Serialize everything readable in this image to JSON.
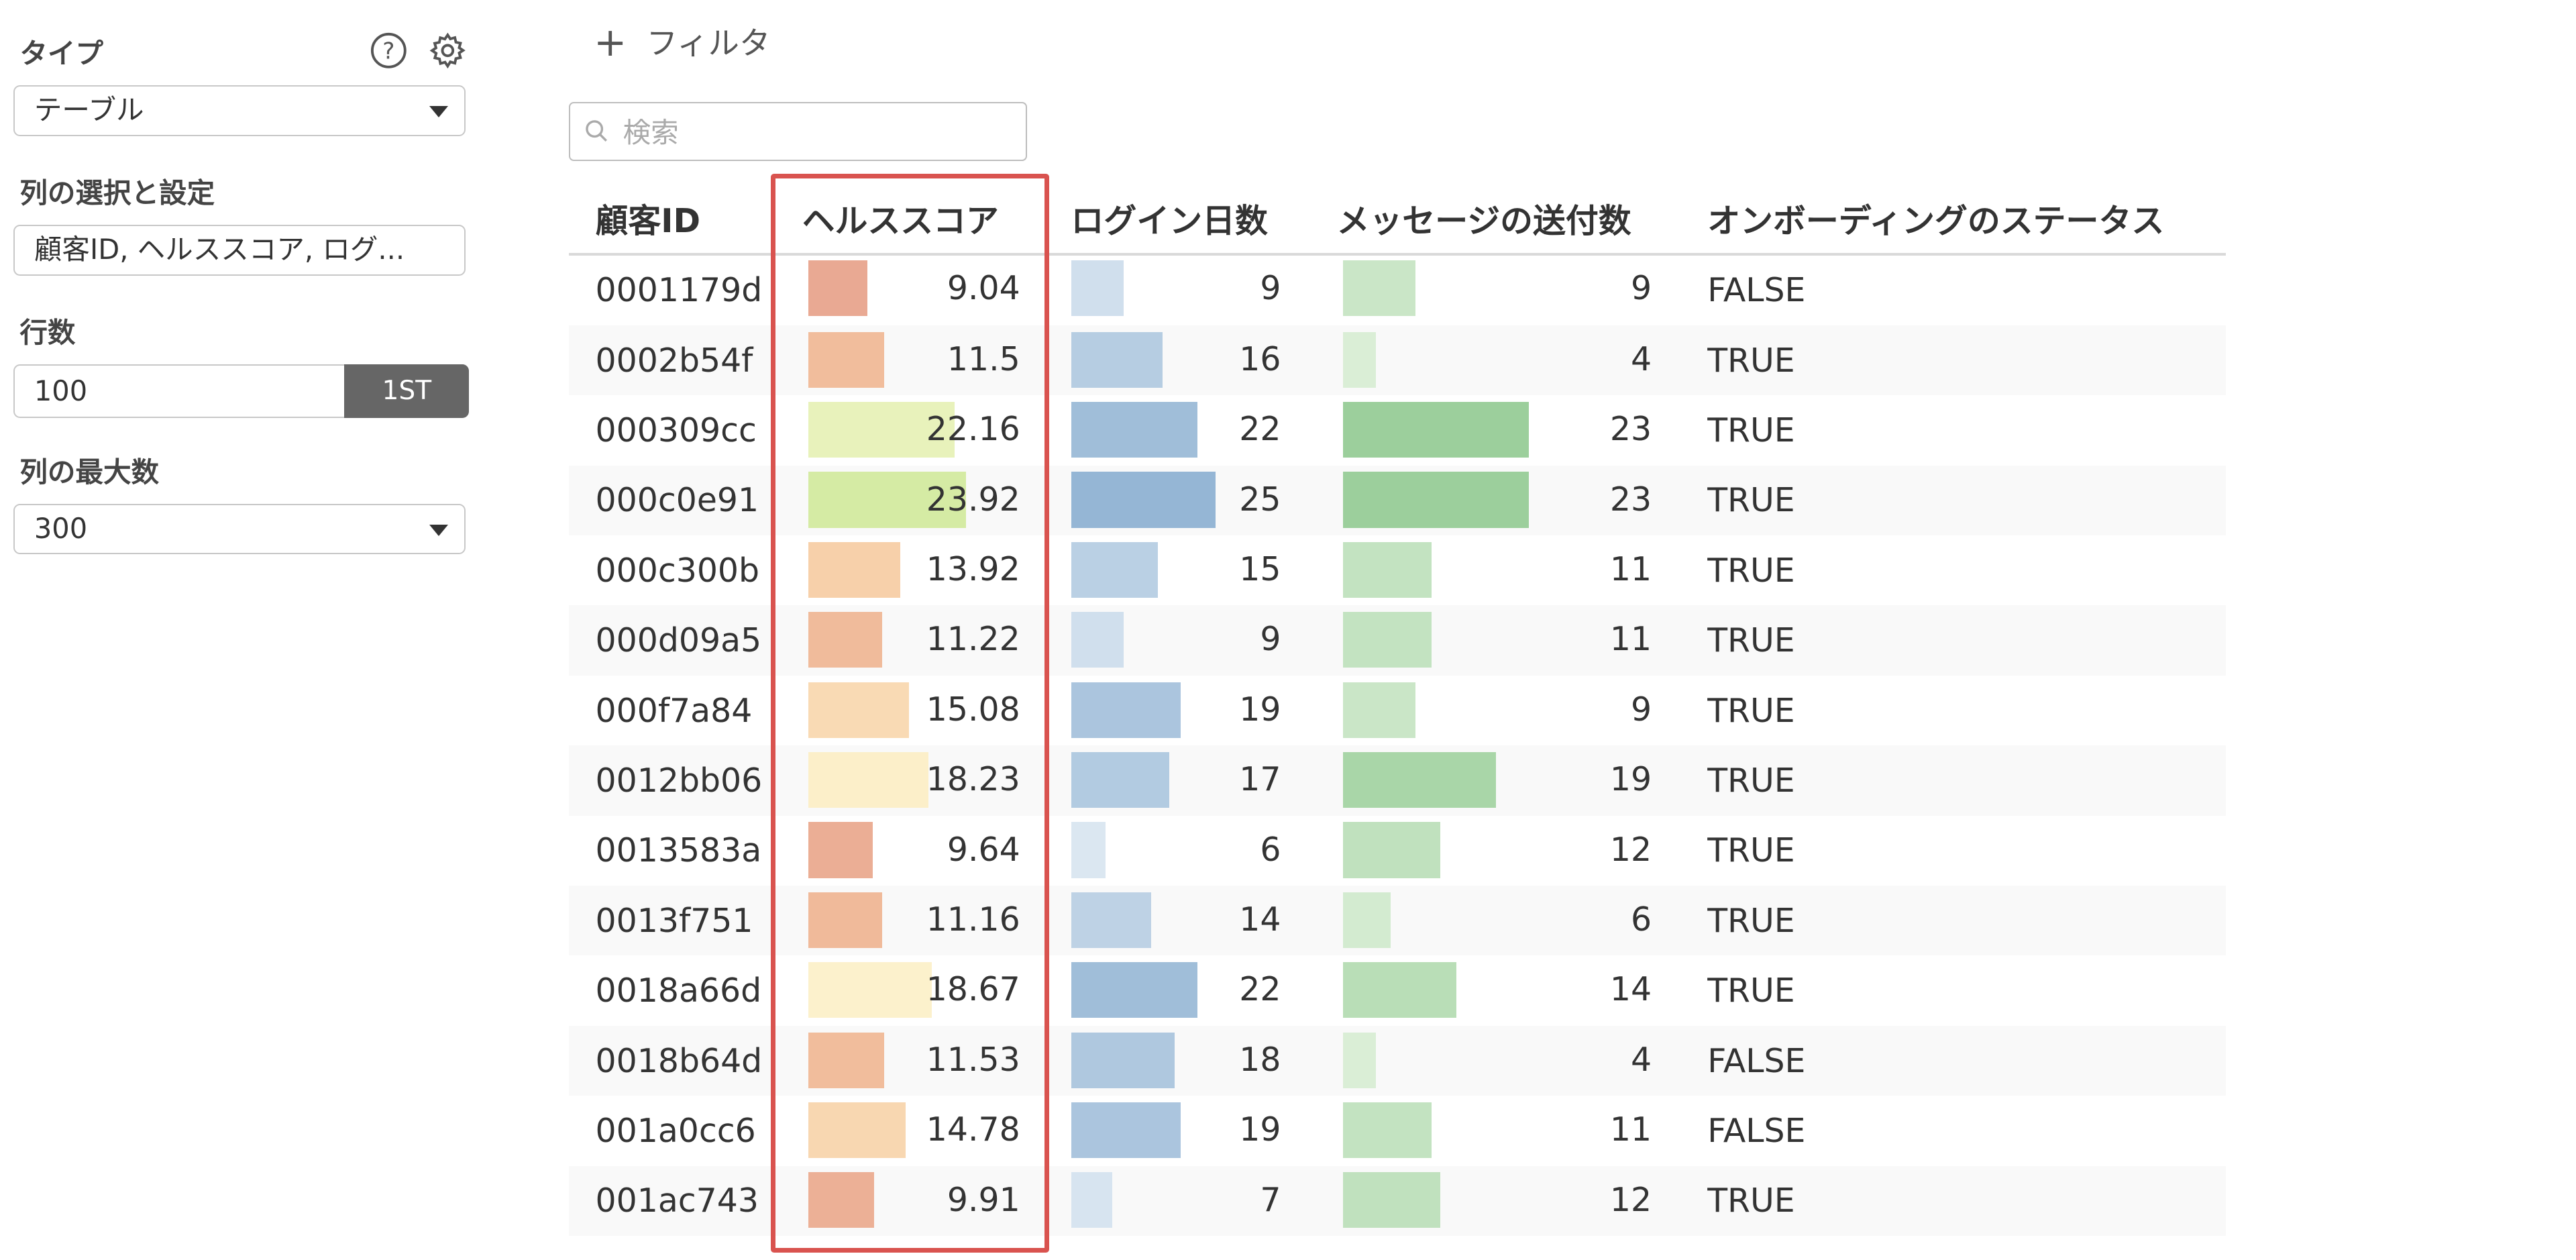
{
  "sidebar": {
    "type_label": "タイプ",
    "type_value": "テーブル",
    "columns_label": "列の選択と設定",
    "columns_value": "顧客ID, ヘルススコア, ログ...",
    "rows_label": "行数",
    "rows_value": "100",
    "rows_button": "1ST",
    "max_cols_label": "列の最大数",
    "max_cols_value": "300",
    "icons": {
      "help": "help-icon",
      "settings": "gear-icon"
    }
  },
  "toolbar": {
    "filter_label": "フィルタ"
  },
  "search": {
    "placeholder": "検索"
  },
  "table": {
    "headers": [
      "顧客ID",
      "ヘルススコア",
      "ログイン日数",
      "メッセージの送付数",
      "オンボーディングのステータス"
    ],
    "rows": [
      {
        "id": "0001179d",
        "health": "9.04",
        "logins": "9",
        "messages": "9",
        "status": "FALSE"
      },
      {
        "id": "0002b54f",
        "health": "11.5",
        "logins": "16",
        "messages": "4",
        "status": "TRUE"
      },
      {
        "id": "000309cc",
        "health": "22.16",
        "logins": "22",
        "messages": "23",
        "status": "TRUE"
      },
      {
        "id": "000c0e91",
        "health": "23.92",
        "logins": "25",
        "messages": "23",
        "status": "TRUE"
      },
      {
        "id": "000c300b",
        "health": "13.92",
        "logins": "15",
        "messages": "11",
        "status": "TRUE"
      },
      {
        "id": "000d09a5",
        "health": "11.22",
        "logins": "9",
        "messages": "11",
        "status": "TRUE"
      },
      {
        "id": "000f7a84",
        "health": "15.08",
        "logins": "19",
        "messages": "9",
        "status": "TRUE"
      },
      {
        "id": "0012bb06",
        "health": "18.23",
        "logins": "17",
        "messages": "19",
        "status": "TRUE"
      },
      {
        "id": "0013583a",
        "health": "9.64",
        "logins": "6",
        "messages": "12",
        "status": "TRUE"
      },
      {
        "id": "0013f751",
        "health": "11.16",
        "logins": "14",
        "messages": "6",
        "status": "TRUE"
      },
      {
        "id": "0018a66d",
        "health": "18.67",
        "logins": "22",
        "messages": "14",
        "status": "TRUE"
      },
      {
        "id": "0018b64d",
        "health": "11.53",
        "logins": "18",
        "messages": "4",
        "status": "FALSE"
      },
      {
        "id": "001a0cc6",
        "health": "14.78",
        "logins": "19",
        "messages": "11",
        "status": "FALSE"
      },
      {
        "id": "001ac743",
        "health": "9.91",
        "logins": "7",
        "messages": "12",
        "status": "TRUE"
      }
    ]
  },
  "colors": {
    "true": "#7cb342",
    "false": "#e05d52",
    "highlight": "#d9534f",
    "health_scale": [
      "#e9a993",
      "#f5c7a0",
      "#fbe5c0",
      "#fdfad4",
      "#d5eba4"
    ],
    "logins_scale": [
      "#dbe7f1",
      "#95b6d5"
    ],
    "messages_scale": [
      "#daeed6",
      "#9ccf9c"
    ]
  }
}
